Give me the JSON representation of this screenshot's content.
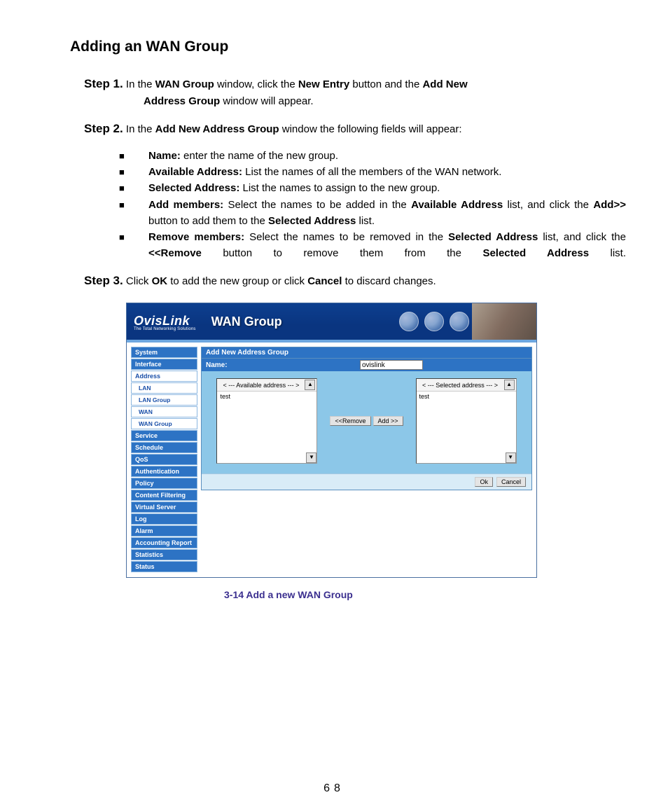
{
  "title": "Adding an WAN Group",
  "steps": {
    "s1": {
      "num": "Step 1.",
      "t1": " In the ",
      "b1": "WAN Group",
      "t2": " window, click the ",
      "b2": "New Entry",
      "t3": " button and the ",
      "b3": "Add New",
      "cont_b": "Address Group",
      "cont_t": " window will appear."
    },
    "s2": {
      "num": "Step 2.",
      "t1": " In the ",
      "b1": "Add New Address Group",
      "t2": " window the following fields will appear:"
    },
    "s3": {
      "num": "Step 3.",
      "t1": " Click ",
      "b1": "OK",
      "t2": " to add the new group or click ",
      "b2": "Cancel",
      "t3": " to discard changes."
    }
  },
  "bullets": {
    "i0": {
      "b": "Name:",
      "t": "    enter the name of the new group."
    },
    "i1": {
      "b": "Available Address:",
      "t": " List the names of all the members of the WAN    network."
    },
    "i2": {
      "b": "Selected Address:",
      "t": "    List the names to assign to the new group."
    },
    "i3": {
      "b": "Add members:",
      "t1": " Select the names to be added in the ",
      "b2": "Available Address",
      "t2": " list, and click the ",
      "b3": "Add>>",
      "t3": " button to add them to the ",
      "b4": "Selected Address",
      "t4": " list."
    },
    "i4": {
      "b": "Remove members:",
      "t1": " Select the names to be removed in the ",
      "b2": "Selected Address",
      "t2": " list, and click the ",
      "b3": "<<Remove",
      "t3": " button to remove them from the ",
      "b4": "Selected Address",
      "t4": " list."
    }
  },
  "shot": {
    "brand_main": "OvisLink",
    "brand_sub": "The Total Networking Solutions",
    "title": "WAN Group",
    "panel_title": "Add New Address Group",
    "name_label": "Name:",
    "name_value": "ovislink",
    "avail_header": "< --- Available address --- >",
    "sel_header": "< --- Selected address --- >",
    "avail_item": "test",
    "sel_item": "test",
    "btn_remove": "<<Remove",
    "btn_add": "Add  >>",
    "btn_ok": "Ok",
    "btn_cancel": "Cancel",
    "up": "▲",
    "down": "▼"
  },
  "nav": {
    "n0": "System",
    "n1": "Interface",
    "n2": "Address",
    "n3": "LAN",
    "n4": "LAN Group",
    "n5": "WAN",
    "n6": "WAN Group",
    "n7": "Service",
    "n8": "Schedule",
    "n9": "QoS",
    "n10": "Authentication",
    "n11": "Policy",
    "n12": "Content Filtering",
    "n13": "Virtual Server",
    "n14": "Log",
    "n15": "Alarm",
    "n16": "Accounting Report",
    "n17": "Statistics",
    "n18": "Status"
  },
  "caption": "3-14 Add a new WAN Group",
  "page_number": "68"
}
